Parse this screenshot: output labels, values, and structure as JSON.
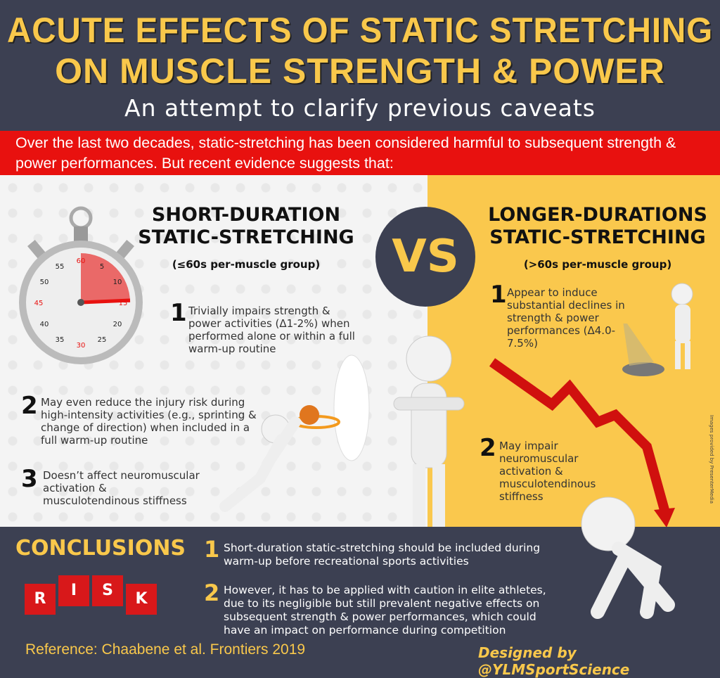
{
  "header": {
    "title_line1": "Acute Effects of Static Stretching",
    "title_line2": "on Muscle Strength & Power",
    "subtitle": "An attempt to clarify previous caveats"
  },
  "intro": "Over the last two decades, static-stretching has been considered harmful to subsequent strength & power performances.  But recent evidence suggests that:",
  "vs": "VS",
  "short": {
    "title_line1": "Short-Duration",
    "title_line2": "Static-Stretching",
    "subtitle": "(≤60s per-muscle group)",
    "points": [
      {
        "num": "1",
        "text": "Trivially impairs strength & power activities (Δ1-2%) when performed alone or within a full warm-up routine"
      },
      {
        "num": "2",
        "text": "May even reduce the injury risk during high-intensity activities (e.g., sprinting & change of direction) when included in a full warm-up routine"
      },
      {
        "num": "3",
        "text": "Doesn’t affect neuromuscular activation & musculotendinous stiffness"
      }
    ]
  },
  "long": {
    "title_line1": "Longer-Durations",
    "title_line2": "Static-Stretching",
    "subtitle": "(>60s per-muscle group)",
    "points": [
      {
        "num": "1",
        "text": "Appear to induce substantial declines in strength & power performances (Δ4.0-7.5%)"
      },
      {
        "num": "2",
        "text": "May impair neuromuscular activation & musculotendinous stiffness"
      }
    ]
  },
  "credit": "Images provided by PresenterMedia",
  "stopwatch": {
    "labels": [
      "60",
      "5",
      "10",
      "15",
      "20",
      "25",
      "30",
      "35",
      "40",
      "45",
      "50",
      "55"
    ]
  },
  "conclusions": {
    "title": "Conclusions",
    "points": [
      {
        "num": "1",
        "text": "Short-duration static-stretching should be included during warm-up before recreational sports activities"
      },
      {
        "num": "2",
        "text": "However, it has to be applied with caution in elite athletes, due to its negligible but still prevalent negative effects on subsequent strength & power performances, which could have an impact on performance during competition"
      }
    ]
  },
  "risk_letters": [
    "R",
    "I",
    "S",
    "K"
  ],
  "reference": "Reference: Chaabene et al. Frontiers 2019",
  "designer": "Designed by @YLMSportScience",
  "colors": {
    "navy": "#3c4052",
    "yellow": "#f9c84b",
    "red": "#e8110f"
  }
}
